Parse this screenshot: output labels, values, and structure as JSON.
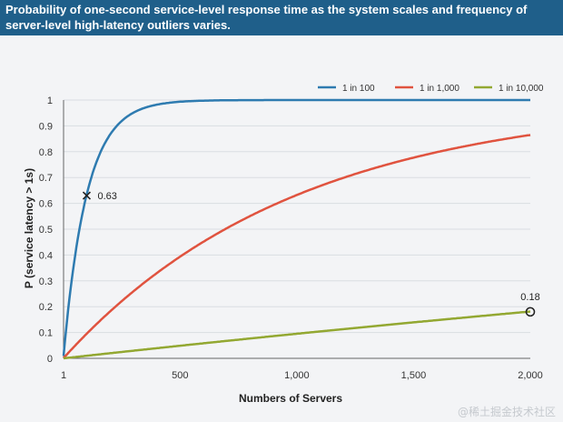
{
  "header": {
    "title": "Probability of one-second service-level response time as the system scales and frequency of server-level high-latency outliers varies."
  },
  "watermark": "@稀土掘金技术社区",
  "chart_data": {
    "type": "line",
    "xlabel": "Numbers of Servers",
    "ylabel": "P (service latency > 1s)",
    "xlim": [
      1,
      2000
    ],
    "ylim": [
      0,
      1
    ],
    "x_ticks": [
      1,
      500,
      1000,
      1500,
      2000
    ],
    "x_tick_labels": [
      "1",
      "500",
      "1,000",
      "1,500",
      "2,000"
    ],
    "y_ticks": [
      0,
      0.1,
      0.2,
      0.3,
      0.4,
      0.5,
      0.6,
      0.7,
      0.8,
      0.9,
      1
    ],
    "y_tick_labels": [
      "0",
      "0.1",
      "0.2",
      "0.3",
      "0.4",
      "0.5",
      "0.6",
      "0.7",
      "0.8",
      "0.9",
      "1"
    ],
    "grid": "horizontal",
    "legend_position": "top-right",
    "series": [
      {
        "name": "1 in 100",
        "color": "#2e7bb0",
        "p": 0.01
      },
      {
        "name": "1 in 1,000",
        "color": "#e0533f",
        "p": 0.001
      },
      {
        "name": "1 in 10,000",
        "color": "#93a832",
        "p": 0.0001
      }
    ],
    "annotations": [
      {
        "x": 100,
        "y": 0.63,
        "label": "0.63",
        "marker": "x"
      },
      {
        "x": 2000,
        "y": 0.18,
        "label": "0.18",
        "marker": "circle"
      }
    ]
  }
}
